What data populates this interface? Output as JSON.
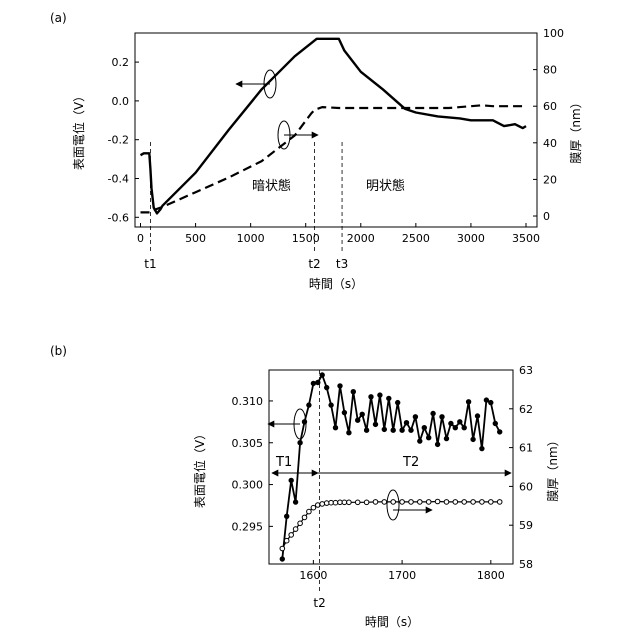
{
  "figure": {
    "panel_labels": [
      "(a)",
      "(b)"
    ]
  },
  "chart_data": [
    {
      "panel": "(a)",
      "type": "line",
      "xlabel": "時間（s）",
      "ylabel_left": "表面電位（V）",
      "ylabel_right": "膜厚（nm）",
      "xlim": [
        -50,
        3600
      ],
      "ylim_left": [
        -0.65,
        0.35
      ],
      "ylim_right": [
        -6,
        100
      ],
      "x_ticks": [
        "0",
        "500",
        "1000",
        "1500",
        "2000",
        "2500",
        "3000",
        "3500"
      ],
      "y_ticks_left": [
        "0.2",
        "0.0",
        "-0.2",
        "-0.4",
        "-0.6"
      ],
      "y_ticks_right": [
        "100",
        "80",
        "60",
        "40",
        "20",
        "0"
      ],
      "grid": false,
      "markers": [
        {
          "label": "t1",
          "x": 90
        },
        {
          "label": "t2",
          "x": 1580
        },
        {
          "label": "t3",
          "x": 1830
        }
      ],
      "region_labels": [
        "暗状態",
        "明状態"
      ],
      "series": [
        {
          "axis": "left",
          "style": "solid",
          "x": [
            0,
            30,
            60,
            80,
            90,
            100,
            120,
            150,
            180,
            200,
            500,
            800,
            1100,
            1400,
            1600,
            1700,
            1800,
            1850,
            2000,
            2200,
            2400,
            2500,
            2700,
            2900,
            3000,
            3200,
            3300,
            3400,
            3470,
            3500
          ],
          "y": [
            -0.28,
            -0.27,
            -0.27,
            -0.27,
            -0.35,
            -0.45,
            -0.55,
            -0.58,
            -0.56,
            -0.54,
            -0.37,
            -0.15,
            0.06,
            0.23,
            0.32,
            0.32,
            0.32,
            0.26,
            0.15,
            0.06,
            -0.04,
            -0.06,
            -0.08,
            -0.09,
            -0.1,
            -0.1,
            -0.13,
            -0.12,
            -0.14,
            -0.13
          ]
        },
        {
          "axis": "right",
          "style": "dashed",
          "x": [
            0,
            50,
            90,
            110,
            200,
            500,
            800,
            1100,
            1400,
            1550,
            1580,
            1650,
            1800,
            2000,
            2200,
            2500,
            2800,
            3000,
            3100,
            3200,
            3500
          ],
          "y": [
            2,
            2,
            2,
            3,
            5,
            13,
            21,
            30,
            44,
            56,
            58,
            59.5,
            59,
            59,
            59,
            59,
            59,
            60,
            60.5,
            60,
            60
          ]
        }
      ]
    },
    {
      "panel": "(b)",
      "type": "line",
      "xlabel": "時間（s）",
      "ylabel_left": "表面電位（V）",
      "ylabel_right": "膜厚（nm）",
      "xlim": [
        1550,
        1825
      ],
      "ylim_left": [
        0.2905,
        0.3137
      ],
      "ylim_right": [
        58,
        63
      ],
      "x_ticks": [
        "1600",
        "1700",
        "1800"
      ],
      "y_ticks_left": [
        "0.310",
        "0.305",
        "0.300",
        "0.295"
      ],
      "y_ticks_right": [
        "63",
        "62",
        "61",
        "60",
        "59",
        "58"
      ],
      "grid": false,
      "markers": [
        {
          "label": "t2",
          "x": 1607
        }
      ],
      "interval_labels": [
        "T1",
        "T2"
      ],
      "series": [
        {
          "axis": "left",
          "style": "solid-dots",
          "x": [
            1565,
            1570,
            1575,
            1580,
            1585,
            1590,
            1595,
            1600,
            1605,
            1610,
            1615,
            1620,
            1625,
            1630,
            1635,
            1640,
            1645,
            1650,
            1655,
            1660,
            1665,
            1670,
            1675,
            1680,
            1685,
            1690,
            1695,
            1700,
            1705,
            1710,
            1715,
            1720,
            1725,
            1730,
            1735,
            1740,
            1745,
            1750,
            1755,
            1760,
            1765,
            1770,
            1775,
            1780,
            1785,
            1790,
            1795,
            1800,
            1805,
            1810
          ],
          "y": [
            0.2911,
            0.2962,
            0.3005,
            0.2979,
            0.305,
            0.3075,
            0.3095,
            0.3121,
            0.3122,
            0.3131,
            0.3116,
            0.3095,
            0.3068,
            0.3118,
            0.3086,
            0.3062,
            0.3111,
            0.3077,
            0.3084,
            0.3065,
            0.3105,
            0.3072,
            0.3107,
            0.3066,
            0.3103,
            0.3065,
            0.3098,
            0.3065,
            0.3074,
            0.3065,
            0.3081,
            0.3052,
            0.3068,
            0.3056,
            0.3085,
            0.3048,
            0.3081,
            0.3055,
            0.3073,
            0.3068,
            0.3075,
            0.3068,
            0.3099,
            0.3054,
            0.3082,
            0.3043,
            0.3101,
            0.3098,
            0.3073,
            0.3063
          ]
        },
        {
          "axis": "right",
          "style": "solid-open-circles",
          "x": [
            1565,
            1570,
            1575,
            1580,
            1585,
            1590,
            1595,
            1600,
            1605,
            1610,
            1615,
            1620,
            1625,
            1630,
            1635,
            1640,
            1650,
            1660,
            1670,
            1680,
            1690,
            1700,
            1710,
            1720,
            1730,
            1740,
            1750,
            1760,
            1770,
            1780,
            1790,
            1800,
            1810
          ],
          "y": [
            58.4,
            58.6,
            58.75,
            58.9,
            59.05,
            59.2,
            59.35,
            59.45,
            59.52,
            59.55,
            59.57,
            59.58,
            59.58,
            59.59,
            59.59,
            59.59,
            59.59,
            59.59,
            59.6,
            59.6,
            59.6,
            59.6,
            59.6,
            59.6,
            59.6,
            59.61,
            59.6,
            59.6,
            59.6,
            59.6,
            59.6,
            59.6,
            59.6
          ]
        }
      ]
    }
  ]
}
